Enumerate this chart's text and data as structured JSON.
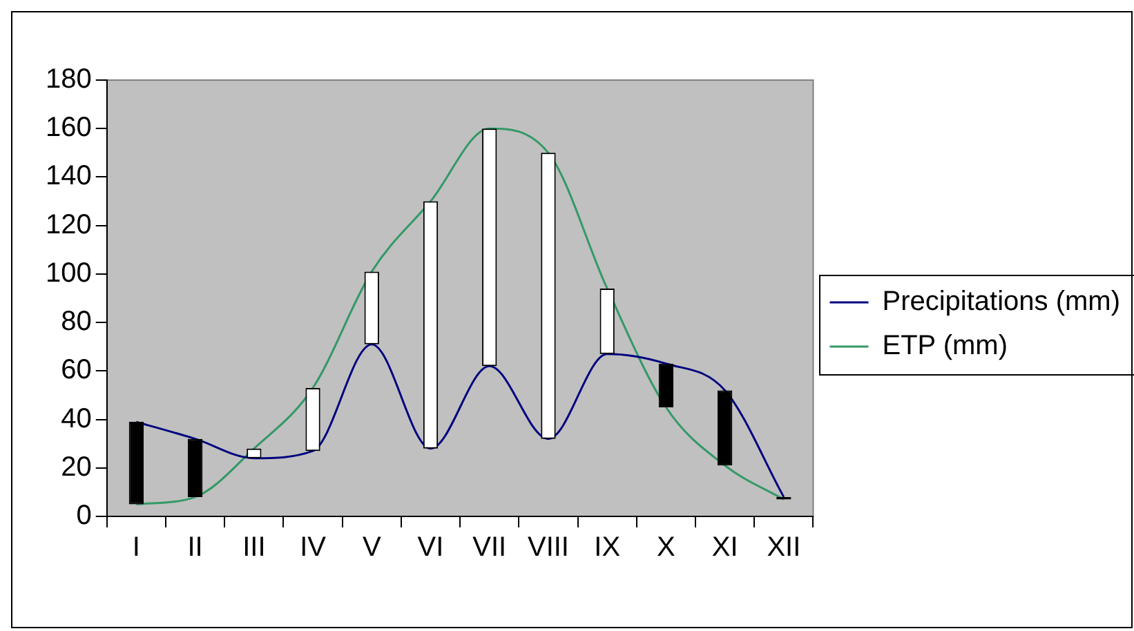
{
  "chart_data": {
    "type": "line",
    "categories": [
      "I",
      "II",
      "III",
      "IV",
      "V",
      "VI",
      "VII",
      "VIII",
      "IX",
      "X",
      "XI",
      "XII"
    ],
    "series": [
      {
        "name": "Precipitations (mm)",
        "color": "#000080",
        "values": [
          39,
          32,
          24,
          27,
          71,
          28,
          62,
          32,
          67,
          63,
          52,
          8
        ]
      },
      {
        "name": "ETP (mm)",
        "color": "#339966",
        "values": [
          5,
          8,
          28,
          53,
          101,
          130,
          160,
          150,
          94,
          45,
          21,
          7
        ]
      },
      {
        "type": "bar",
        "base": [
          39,
          32,
          24,
          27,
          71,
          28,
          62,
          32,
          67,
          63,
          52,
          8
        ],
        "values": [
          -34,
          -24,
          4,
          26,
          30,
          102,
          98,
          118,
          27,
          -18,
          -31,
          -1
        ],
        "colors": [
          "#000000",
          "#000000",
          "#ffffff",
          "#ffffff",
          "#ffffff",
          "#ffffff",
          "#ffffff",
          "#ffffff",
          "#ffffff",
          "#000000",
          "#000000",
          "#000000"
        ]
      }
    ],
    "ylim": [
      0,
      180
    ],
    "yticks": [
      0,
      20,
      40,
      60,
      80,
      100,
      120,
      140,
      160,
      180
    ],
    "grid": false,
    "legend": "right",
    "marker": "none",
    "line_style": "solid"
  }
}
